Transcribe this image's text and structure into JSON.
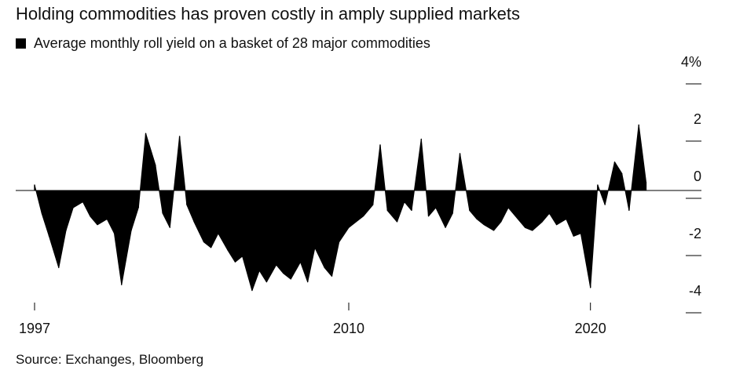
{
  "title": "Holding commodities has proven costly in amply supplied markets",
  "legend": {
    "label": "Average monthly roll yield on a basket of 28 major commodities",
    "color": "#000000"
  },
  "source": "Source: Exchanges, Bloomberg",
  "chart_data": {
    "type": "area",
    "title": "Holding commodities has proven costly in amply supplied markets",
    "series": [
      {
        "name": "Average monthly roll yield on a basket of 28 major commodities",
        "unit": "%",
        "x": [
          1997.0,
          1997.3,
          1997.6,
          1998.0,
          1998.3,
          1998.6,
          1999.0,
          1999.3,
          1999.6,
          2000.0,
          2000.3,
          2000.6,
          2001.0,
          2001.3,
          2001.6,
          2002.0,
          2002.3,
          2002.6,
          2003.0,
          2003.3,
          2003.6,
          2004.0,
          2004.3,
          2004.6,
          2005.0,
          2005.3,
          2005.6,
          2006.0,
          2006.3,
          2006.6,
          2007.0,
          2007.3,
          2007.6,
          2008.0,
          2008.3,
          2008.6,
          2009.0,
          2009.3,
          2009.6,
          2010.0,
          2010.3,
          2010.6,
          2011.0,
          2011.3,
          2011.6,
          2012.0,
          2012.3,
          2012.6,
          2013.0,
          2013.3,
          2013.6,
          2014.0,
          2014.3,
          2014.6,
          2015.0,
          2015.3,
          2015.6,
          2016.0,
          2016.3,
          2016.6,
          2017.0,
          2017.3,
          2017.6,
          2018.0,
          2018.3,
          2018.6,
          2019.0,
          2019.3,
          2019.6,
          2020.0,
          2020.3,
          2020.6,
          2021.0,
          2021.3,
          2021.6,
          2022.0,
          2022.3
        ],
        "values": [
          0.2,
          -0.8,
          -1.6,
          -2.7,
          -1.4,
          -0.6,
          -0.4,
          -0.9,
          -1.2,
          -1.0,
          -1.5,
          -3.3,
          -1.4,
          -0.6,
          2.0,
          0.9,
          -0.8,
          -1.3,
          1.9,
          -0.5,
          -1.1,
          -1.8,
          -2.0,
          -1.5,
          -2.1,
          -2.5,
          -2.3,
          -3.5,
          -2.8,
          -3.2,
          -2.6,
          -2.9,
          -3.1,
          -2.5,
          -3.2,
          -2.0,
          -2.7,
          -3.0,
          -1.8,
          -1.3,
          -1.1,
          -0.9,
          -0.5,
          1.6,
          -0.7,
          -1.1,
          -0.4,
          -0.7,
          1.8,
          -0.9,
          -0.6,
          -1.3,
          -0.8,
          1.3,
          -0.7,
          -1.0,
          -1.2,
          -1.4,
          -1.1,
          -0.6,
          -1.0,
          -1.3,
          -1.4,
          -1.1,
          -0.8,
          -1.2,
          -1.0,
          -1.6,
          -1.5,
          -3.4,
          0.2,
          -0.5,
          1.0,
          0.6,
          -0.7,
          2.3,
          0.3
        ]
      }
    ],
    "xlim": [
      1997,
      2023
    ],
    "ylim": [
      -4.3,
      4.3
    ],
    "x_ticks": [
      {
        "value": 1997,
        "label": "1997"
      },
      {
        "value": 2010,
        "label": "2010"
      },
      {
        "value": 2020,
        "label": "2020"
      }
    ],
    "y_ticks": [
      {
        "value": 4,
        "label": "4%"
      },
      {
        "value": 2,
        "label": "2"
      },
      {
        "value": 0,
        "label": "0"
      },
      {
        "value": -2,
        "label": "-2"
      },
      {
        "value": -4,
        "label": "-4"
      }
    ],
    "xlabel": "",
    "ylabel": "",
    "grid": false,
    "legend_position": "top-left"
  }
}
